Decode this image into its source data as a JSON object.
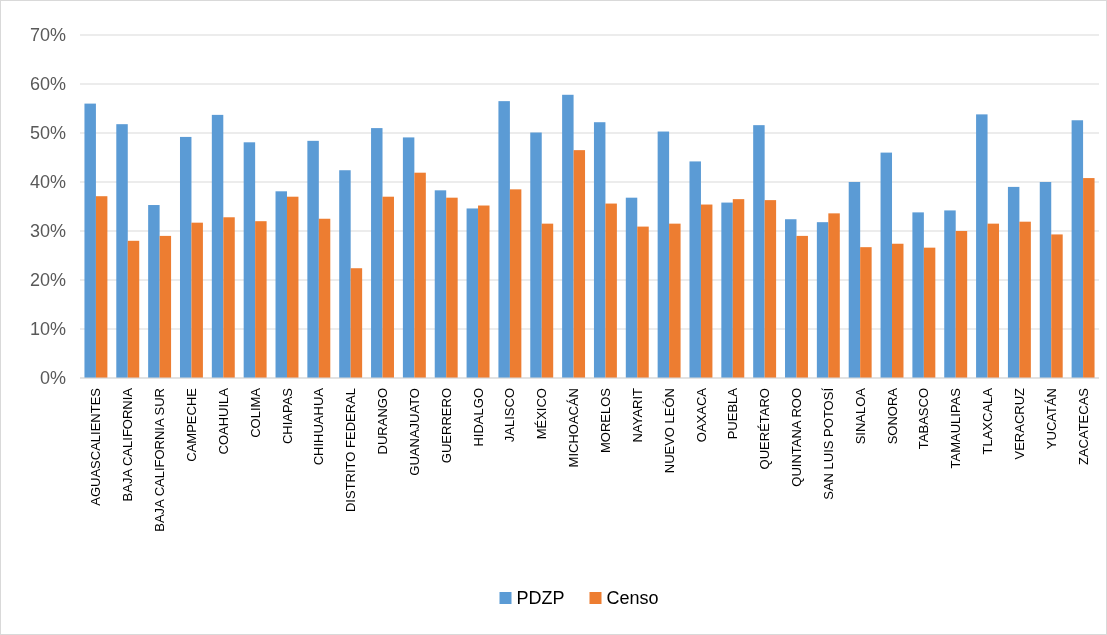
{
  "chart_data": {
    "type": "bar",
    "categories": [
      "AGUASCALIENTES",
      "BAJA CALIFORNIA",
      "BAJA CALIFORNIA SUR",
      "CAMPECHE",
      "COAHUILA",
      "COLIMA",
      "CHIAPAS",
      "CHIHUAHUA",
      "DISTRITO FEDERAL",
      "DURANGO",
      "GUANAJUATO",
      "GUERRERO",
      "HIDALGO",
      "JALISCO",
      "MÉXICO",
      "MICHOACÁN",
      "MORELOS",
      "NAYARIT",
      "NUEVO LEÓN",
      "OAXACA",
      "PUEBLA",
      "QUERÉTARO",
      "QUINTANA ROO",
      "SAN LUIS POTOSÍ",
      "SINALOA",
      "SONORA",
      "TABASCO",
      "TAMAULIPAS",
      "TLAXCALA",
      "VERACRUZ",
      "YUCATÁN",
      "ZACATECAS"
    ],
    "series": [
      {
        "name": "PDZP",
        "color": "#5b9bd5",
        "values": [
          56.0,
          51.8,
          35.3,
          49.2,
          53.7,
          48.1,
          38.1,
          48.4,
          42.4,
          51.0,
          49.1,
          38.3,
          34.6,
          56.5,
          50.1,
          57.8,
          52.2,
          36.8,
          50.3,
          44.2,
          35.8,
          51.6,
          32.4,
          31.8,
          40.0,
          46.0,
          33.8,
          34.2,
          53.8,
          39.0,
          40.0,
          52.6
        ]
      },
      {
        "name": "Censo",
        "color": "#ed7d31",
        "values": [
          37.1,
          28.0,
          29.0,
          31.7,
          32.8,
          32.0,
          37.0,
          32.5,
          22.4,
          37.0,
          41.9,
          36.8,
          35.2,
          38.5,
          31.5,
          46.5,
          35.6,
          30.9,
          31.5,
          35.4,
          36.5,
          36.3,
          29.0,
          33.6,
          26.7,
          27.4,
          26.6,
          30.0,
          31.5,
          31.9,
          29.3,
          40.8
        ]
      }
    ],
    "ylim": [
      0,
      70
    ],
    "yticks": [
      {
        "value": 0,
        "label": "0%"
      },
      {
        "value": 10,
        "label": "10%"
      },
      {
        "value": 20,
        "label": "20%"
      },
      {
        "value": 30,
        "label": "30%"
      },
      {
        "value": 40,
        "label": "40%"
      },
      {
        "value": 50,
        "label": "50%"
      },
      {
        "value": 60,
        "label": "60%"
      },
      {
        "value": 70,
        "label": "70%"
      }
    ],
    "grid": "y",
    "legend": "bottom"
  }
}
